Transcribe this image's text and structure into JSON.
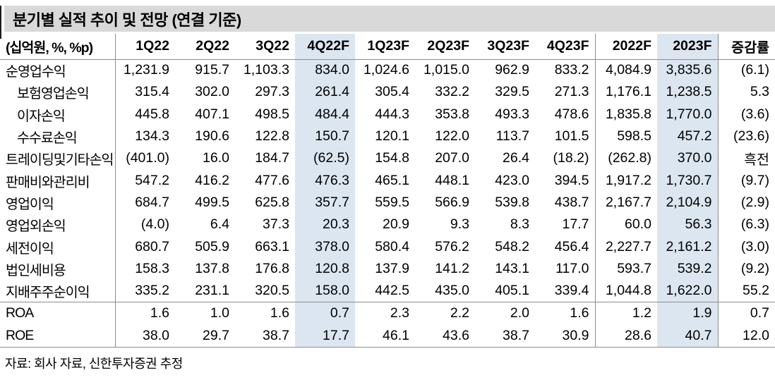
{
  "title": "분기별 실적 추이 및 전망 (연결 기준)",
  "footer": "자료: 회사 자료, 신한투자증권 추정",
  "colors": {
    "title_bg": "#d9d9d9",
    "highlight": "#dce6f1",
    "border": "#8c8c8c",
    "text": "#000000"
  },
  "table": {
    "unit_label": "(십억원, %, %p)",
    "columns": [
      "1Q22",
      "2Q22",
      "3Q22",
      "4Q22F",
      "1Q23F",
      "2Q23F",
      "3Q23F",
      "4Q23F",
      "2022F",
      "2023F",
      "증감률"
    ],
    "highlight_columns": [
      "4Q22F",
      "2023F"
    ],
    "rows": [
      {
        "label": "순영업수익",
        "indent": false,
        "values": [
          "1,231.9",
          "915.7",
          "1,103.3",
          "834.0",
          "1,024.6",
          "1,015.0",
          "962.9",
          "833.2",
          "4,084.9",
          "3,835.6",
          "(6.1)"
        ]
      },
      {
        "label": "보험영업손익",
        "indent": true,
        "values": [
          "315.4",
          "302.0",
          "297.3",
          "261.4",
          "305.4",
          "332.2",
          "329.5",
          "271.3",
          "1,176.1",
          "1,238.5",
          "5.3"
        ]
      },
      {
        "label": "이자손익",
        "indent": true,
        "values": [
          "445.8",
          "407.1",
          "498.5",
          "484.4",
          "444.3",
          "353.8",
          "493.3",
          "478.6",
          "1,835.8",
          "1,770.0",
          "(3.6)"
        ]
      },
      {
        "label": "수수료손익",
        "indent": true,
        "values": [
          "134.3",
          "190.6",
          "122.8",
          "150.7",
          "120.1",
          "122.0",
          "113.7",
          "101.5",
          "598.5",
          "457.2",
          "(23.6)"
        ]
      },
      {
        "label": "트레이딩및기타손익",
        "indent": false,
        "values": [
          "(401.0)",
          "16.0",
          "184.7",
          "(62.5)",
          "154.8",
          "207.0",
          "26.4",
          "(18.2)",
          "(262.8)",
          "370.0",
          "흑전"
        ]
      },
      {
        "label": "판매비와관리비",
        "indent": false,
        "values": [
          "547.2",
          "416.2",
          "477.6",
          "476.3",
          "465.1",
          "448.1",
          "423.0",
          "394.5",
          "1,917.2",
          "1,730.7",
          "(9.7)"
        ]
      },
      {
        "label": "영업이익",
        "indent": false,
        "values": [
          "684.7",
          "499.5",
          "625.8",
          "357.7",
          "559.5",
          "566.9",
          "539.8",
          "438.7",
          "2,167.7",
          "2,104.9",
          "(2.9)"
        ]
      },
      {
        "label": "영업외손익",
        "indent": false,
        "values": [
          "(4.0)",
          "6.4",
          "37.3",
          "20.3",
          "20.9",
          "9.3",
          "8.3",
          "17.7",
          "60.0",
          "56.3",
          "(6.3)"
        ]
      },
      {
        "label": "세전이익",
        "indent": false,
        "values": [
          "680.7",
          "505.9",
          "663.1",
          "378.0",
          "580.4",
          "576.2",
          "548.2",
          "456.4",
          "2,227.7",
          "2,161.2",
          "(3.0)"
        ]
      },
      {
        "label": "법인세비용",
        "indent": false,
        "values": [
          "158.3",
          "137.8",
          "176.8",
          "120.8",
          "137.9",
          "141.2",
          "143.1",
          "117.0",
          "593.7",
          "539.2",
          "(9.2)"
        ]
      },
      {
        "label": "지배주주순이익",
        "indent": false,
        "values": [
          "335.2",
          "231.1",
          "320.5",
          "158.0",
          "442.5",
          "435.0",
          "405.1",
          "339.4",
          "1,044.8",
          "1,622.0",
          "55.2"
        ]
      }
    ],
    "ratio_rows": [
      {
        "label": "ROA",
        "indent": false,
        "values": [
          "1.6",
          "1.0",
          "1.6",
          "0.7",
          "2.3",
          "2.2",
          "2.0",
          "1.6",
          "1.2",
          "1.9",
          "0.7"
        ]
      },
      {
        "label": "ROE",
        "indent": false,
        "values": [
          "38.0",
          "29.7",
          "38.7",
          "17.7",
          "46.1",
          "43.6",
          "38.7",
          "30.9",
          "28.6",
          "40.7",
          "12.0"
        ]
      }
    ]
  }
}
